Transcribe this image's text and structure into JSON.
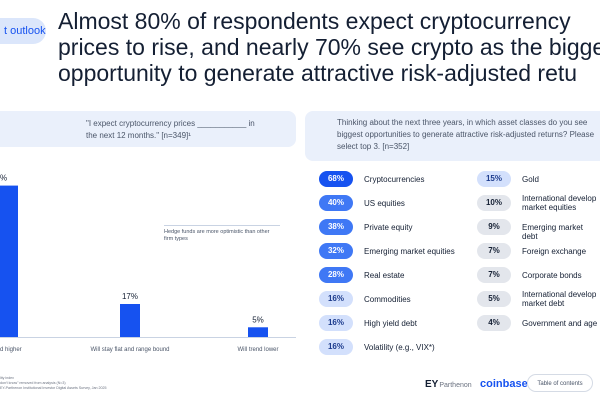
{
  "section_tag": "t outlook",
  "headline": {
    "line1": "Almost 80% of respondents expect cryptocurrency",
    "line2": "prices to rise, and nearly 70% see crypto as the bigge",
    "line3": "opportunity to generate attractive risk-adjusted retu"
  },
  "left_panel": {
    "prompt": "\"I expect cryptocurrency prices ___________ in the next 12 months.\" [n=349]¹",
    "note": "Hedge funds are more optimistic than other firm types"
  },
  "right_panel": {
    "prompt": "Thinking about the next three years, in which asset classes do you see biggest opportunities to generate attractive risk-adjusted returns? Please select top 3. [n=352]",
    "left_items": [
      {
        "value": "68%",
        "label": "Cryptocurrencies"
      },
      {
        "value": "40%",
        "label": "US equities"
      },
      {
        "value": "38%",
        "label": "Private equity"
      },
      {
        "value": "32%",
        "label": "Emerging market equities"
      },
      {
        "value": "28%",
        "label": "Real estate"
      },
      {
        "value": "16%",
        "label": "Commodities"
      },
      {
        "value": "16%",
        "label": "High yield debt"
      },
      {
        "value": "16%",
        "label": "Volatility (e.g., VIX*)"
      }
    ],
    "right_items": [
      {
        "value": "15%",
        "label": "Gold"
      },
      {
        "value": "10%",
        "label": "International develop market equities"
      },
      {
        "value": "9%",
        "label": "Emerging market debt"
      },
      {
        "value": "7%",
        "label": "Foreign exchange"
      },
      {
        "value": "7%",
        "label": "Corporate bonds"
      },
      {
        "value": "5%",
        "label": "International develop market debt"
      },
      {
        "value": "4%",
        "label": "Government and age"
      }
    ]
  },
  "colors": {
    "bar": "#1652f0",
    "pill_dark": "#1652f0",
    "pill_mid": "#3f78f5",
    "pill_light": "#d3e0fc",
    "pill_gray": "#e3e6ec",
    "panel": "#eaf0fb"
  },
  "footnotes": {
    "line1": "lity index",
    "line2": "don't know\" removed from analysis (N=3)",
    "line3": "EY-Parthenon Institutional Investor Digital Assets Survey, Jan 2025"
  },
  "logos": {
    "ey": "EY",
    "ey_sub": "Parthenon",
    "coinbase": "coinbase"
  },
  "toc_label": "Table of contents",
  "chart_data": [
    {
      "type": "bar",
      "title": "\"I expect cryptocurrency prices ___________ in the next 12 months.\" [n=349]",
      "categories": [
        "d higher",
        "Will stay flat and range bound",
        "Will trend lower"
      ],
      "categories_visible_prefix": "Will trend higher (partially cut off)",
      "values": [
        78,
        17,
        5
      ],
      "value_labels": [
        "%",
        "17%",
        "5%"
      ],
      "ylim": [
        0,
        85
      ],
      "xlabel": "",
      "ylabel": ""
    },
    {
      "type": "table",
      "title": "Biggest opportunities to generate attractive risk-adjusted returns (top 3) [n=352]",
      "categories": [
        "Cryptocurrencies",
        "US equities",
        "Private equity",
        "Emerging market equities",
        "Real estate",
        "Commodities",
        "High yield debt",
        "Volatility (e.g., VIX*)",
        "Gold",
        "International develop market equities",
        "Emerging market debt",
        "Foreign exchange",
        "Corporate bonds",
        "International develop market debt",
        "Government and age"
      ],
      "values": [
        68,
        40,
        38,
        32,
        28,
        16,
        16,
        16,
        15,
        10,
        9,
        7,
        7,
        5,
        4
      ]
    }
  ]
}
